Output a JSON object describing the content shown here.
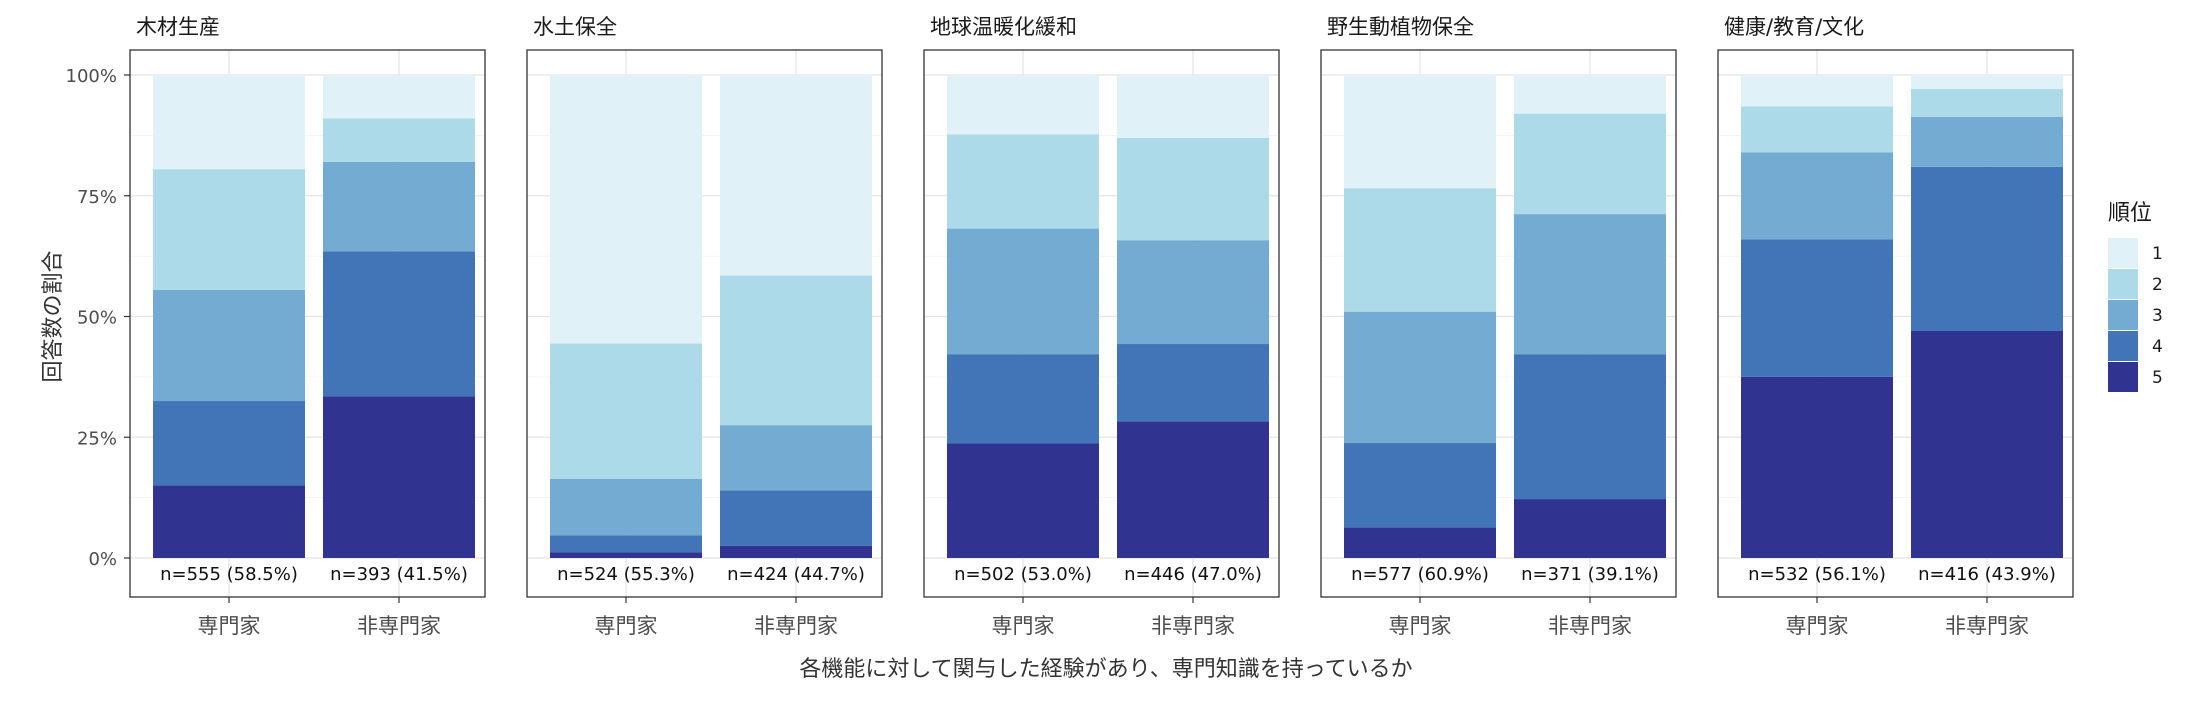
{
  "chart_data": {
    "type": "bar",
    "stacked": true,
    "normalized": true,
    "categories": [
      "専門家",
      "非専門家"
    ],
    "ylabel": "回答数の割合",
    "xlabel": "各機能に対して関与した経験があり、専門知識を持っているか",
    "ylim": [
      0,
      1
    ],
    "y_ticks": [
      "0%",
      "25%",
      "50%",
      "75%",
      "100%"
    ],
    "grid": true,
    "legend": {
      "title": "順位",
      "position": "right",
      "items": [
        "1",
        "2",
        "3",
        "4",
        "5"
      ]
    },
    "colors": {
      "1": "#e0f2f8",
      "2": "#acdae8",
      "3": "#73abd2",
      "4": "#4274b8",
      "5": "#303390"
    },
    "panels": [
      {
        "title": "木材生産",
        "bars": [
          {
            "category": "専門家",
            "label": "n=555  (58.5%)",
            "values": {
              "5": 0.15,
              "4": 0.175,
              "3": 0.23,
              "2": 0.25,
              "1": 0.195
            }
          },
          {
            "category": "非専門家",
            "label": "n=393  (41.5%)",
            "values": {
              "5": 0.335,
              "4": 0.3,
              "3": 0.185,
              "2": 0.09,
              "1": 0.09
            }
          }
        ]
      },
      {
        "title": "水土保全",
        "bars": [
          {
            "category": "専門家",
            "label": "n=524  (55.3%)",
            "values": {
              "5": 0.012,
              "4": 0.035,
              "3": 0.117,
              "2": 0.28,
              "1": 0.556
            }
          },
          {
            "category": "非専門家",
            "label": "n=424  (44.7%)",
            "values": {
              "5": 0.025,
              "4": 0.115,
              "3": 0.135,
              "2": 0.31,
              "1": 0.415
            }
          }
        ]
      },
      {
        "title": "地球温暖化緩和",
        "bars": [
          {
            "category": "専門家",
            "label": "n=502  (53.0%)",
            "values": {
              "5": 0.237,
              "4": 0.185,
              "3": 0.26,
              "2": 0.195,
              "1": 0.123
            }
          },
          {
            "category": "非専門家",
            "label": "n=446  (47.0%)",
            "values": {
              "5": 0.283,
              "4": 0.16,
              "3": 0.215,
              "2": 0.212,
              "1": 0.13
            }
          }
        ]
      },
      {
        "title": "野生動植物保全",
        "bars": [
          {
            "category": "専門家",
            "label": "n=577  (60.9%)",
            "values": {
              "5": 0.063,
              "4": 0.175,
              "3": 0.272,
              "2": 0.255,
              "1": 0.235
            }
          },
          {
            "category": "非専門家",
            "label": "n=371  (39.1%)",
            "values": {
              "5": 0.122,
              "4": 0.3,
              "3": 0.29,
              "2": 0.208,
              "1": 0.08
            }
          }
        ]
      },
      {
        "title": "健康/教育/文化",
        "bars": [
          {
            "category": "専門家",
            "label": "n=532  (56.1%)",
            "values": {
              "5": 0.375,
              "4": 0.285,
              "3": 0.18,
              "2": 0.095,
              "1": 0.065
            }
          },
          {
            "category": "非専門家",
            "label": "n=416  (43.9%)",
            "values": {
              "5": 0.47,
              "4": 0.34,
              "3": 0.103,
              "2": 0.058,
              "1": 0.029
            }
          }
        ]
      }
    ]
  }
}
